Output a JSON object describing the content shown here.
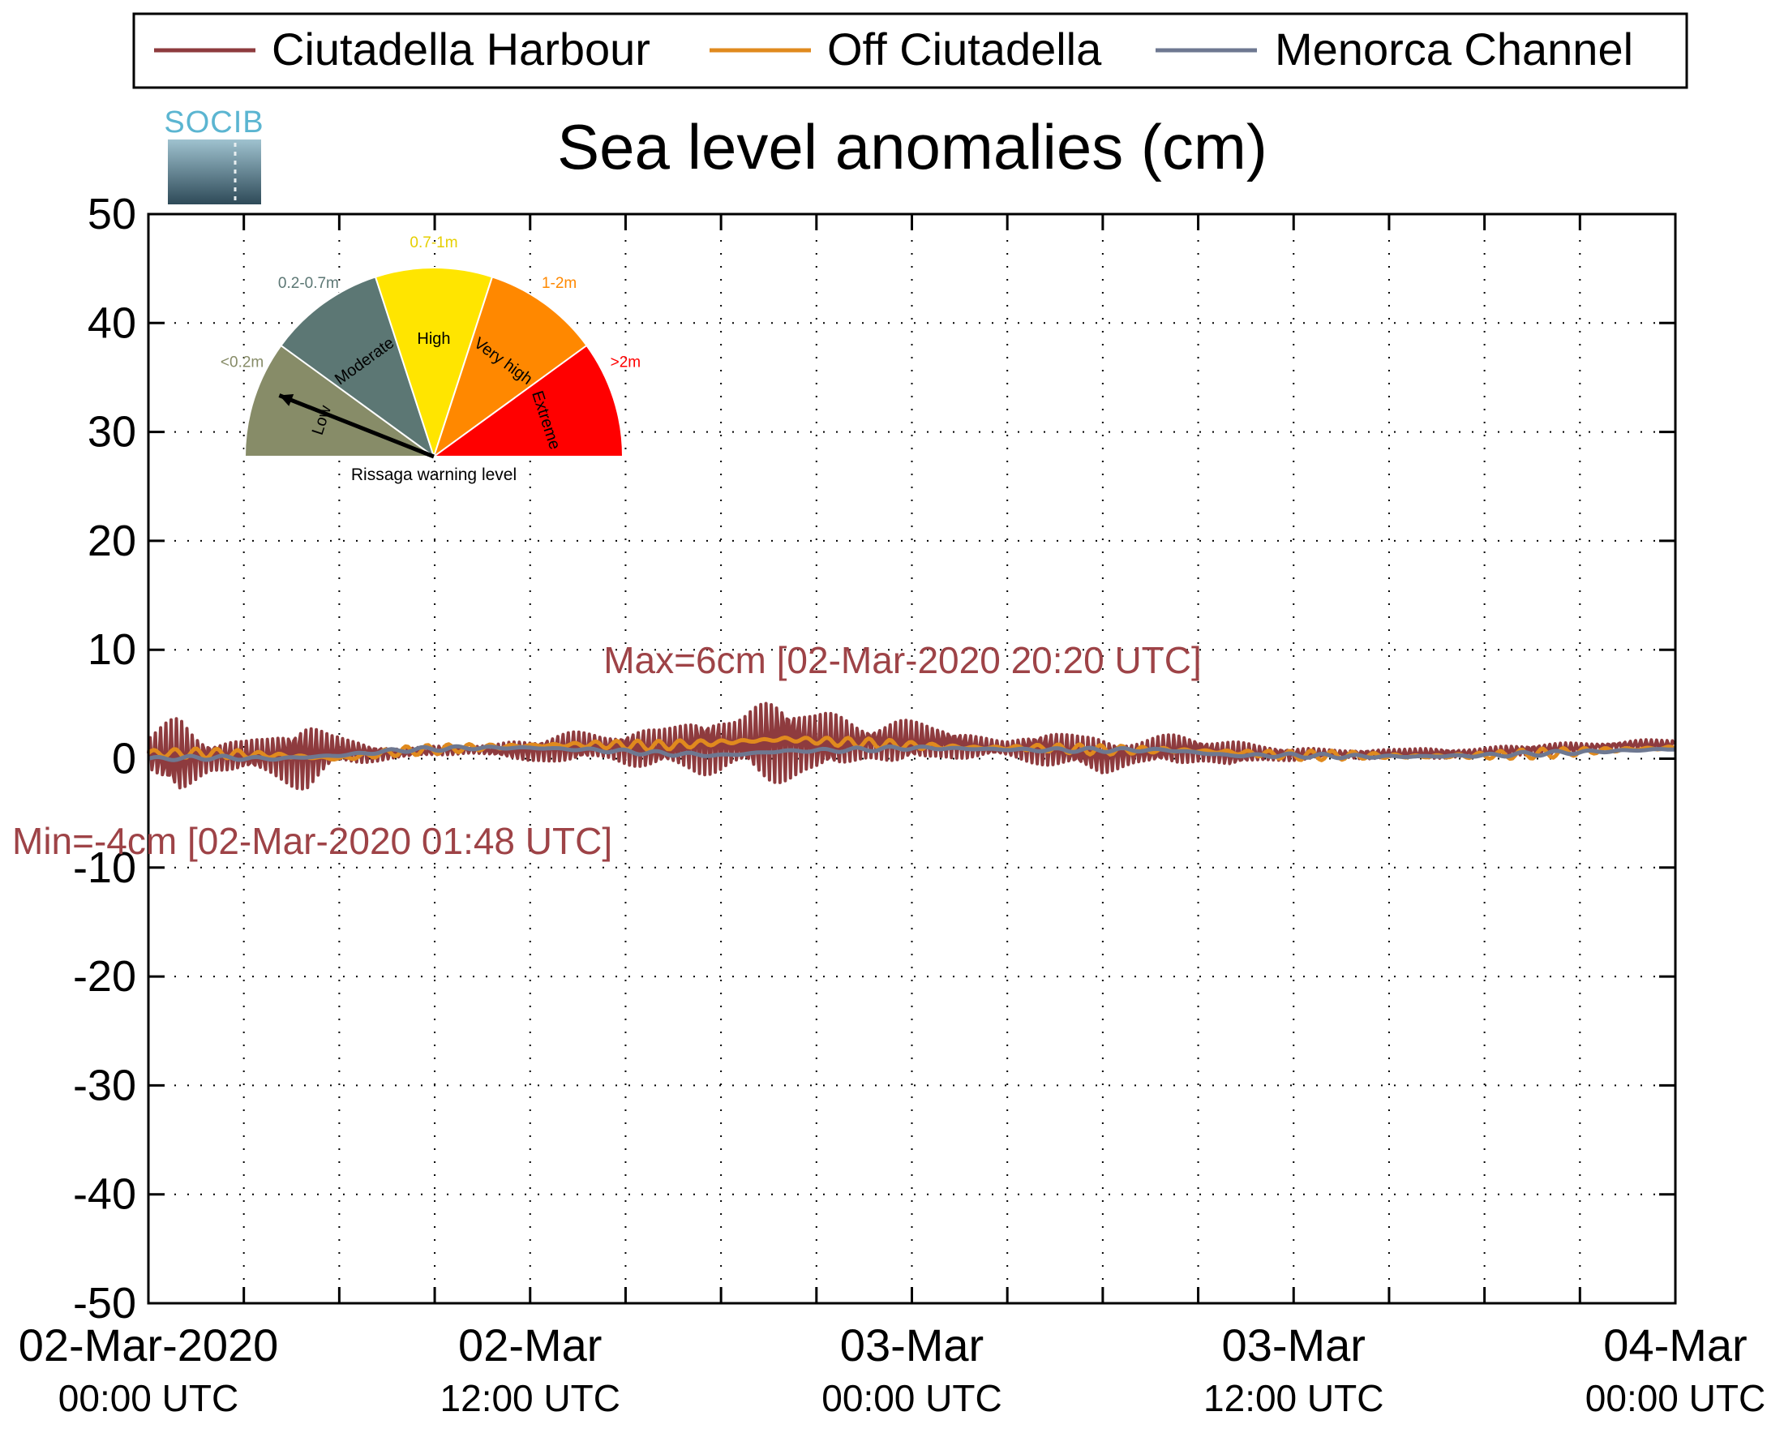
{
  "legend": {
    "items": [
      {
        "label": "Ciutadella Harbour",
        "color": "#8e3b3e"
      },
      {
        "label": "Off Ciutadella",
        "color": "#e08a1e"
      },
      {
        "label": "Menorca Channel",
        "color": "#6e7891"
      }
    ]
  },
  "logo": {
    "text": "SOCIB"
  },
  "chart_data": {
    "type": "line",
    "title": "Sea level anomalies (cm)",
    "xlabel": "",
    "ylabel": "",
    "ylim": [
      -50,
      50
    ],
    "yticks": [
      -50,
      -40,
      -30,
      -20,
      -10,
      0,
      10,
      20,
      30,
      40,
      50
    ],
    "xlim_hours": [
      0,
      48
    ],
    "xticks": [
      {
        "line1": "02-Mar-2020",
        "line2": "00:00 UTC",
        "hour": 0
      },
      {
        "line1": "02-Mar",
        "line2": "12:00 UTC",
        "hour": 12
      },
      {
        "line1": "03-Mar",
        "line2": "00:00 UTC",
        "hour": 24
      },
      {
        "line1": "03-Mar",
        "line2": "12:00 UTC",
        "hour": 36
      },
      {
        "line1": "04-Mar",
        "line2": "00:00 UTC",
        "hour": 48
      }
    ],
    "grid": true,
    "grid_every_hours": 3,
    "series": [
      {
        "name": "Ciutadella Harbour",
        "color": "#8e3b3e",
        "hours": [
          0,
          1,
          2,
          3,
          4,
          5,
          6,
          7,
          8,
          9,
          10,
          11,
          12,
          13,
          14,
          15,
          16,
          17,
          18,
          19,
          20,
          21,
          22,
          23,
          24,
          25,
          26,
          27,
          28,
          29,
          30,
          31,
          32,
          33,
          34,
          35,
          36,
          37,
          38,
          39,
          40,
          41,
          42,
          43,
          44,
          45,
          46,
          47,
          48
        ],
        "envelope_low": [
          -1.5,
          -4,
          -2,
          -1.5,
          -2.5,
          -3,
          -1.5,
          -0.5,
          0,
          0.3,
          0.2,
          0,
          -0.5,
          -0.5,
          -0.8,
          -1,
          -1.2,
          -1.5,
          -2.5,
          -3,
          -2.5,
          -2.2,
          -1.5,
          -1,
          -0.5,
          -0.5,
          -0.3,
          -0.2,
          -0.5,
          -1.5,
          -2,
          -1,
          -0.5,
          -0.8,
          -1.2,
          -0.5,
          -0.2,
          0,
          -0.2,
          0,
          0,
          0,
          0,
          0.2,
          0.3,
          0.5,
          0.7,
          0.8,
          0.8
        ],
        "envelope_high": [
          2.5,
          4,
          2.5,
          2,
          3,
          3.5,
          3,
          1.5,
          1,
          1.2,
          1.5,
          1.5,
          2,
          2.5,
          3,
          3,
          3,
          4,
          5,
          6,
          6,
          5,
          4.5,
          4,
          3.5,
          3.5,
          2.5,
          2,
          2.5,
          3,
          2.5,
          2,
          2.2,
          2.5,
          2,
          1.5,
          1,
          1,
          1,
          1,
          1,
          1,
          1.2,
          1.3,
          1.5,
          1.5,
          1.7,
          1.8,
          1.8
        ]
      },
      {
        "name": "Off Ciutadella",
        "color": "#e08a1e",
        "hours": [
          0,
          2,
          4,
          6,
          8,
          10,
          12,
          14,
          16,
          18,
          20,
          22,
          24,
          26,
          28,
          30,
          32,
          34,
          36,
          38,
          40,
          42,
          44,
          46,
          48
        ],
        "values": [
          0.5,
          0.5,
          0.3,
          0,
          0.7,
          1,
          1.2,
          1.3,
          1.2,
          1.5,
          1.8,
          1.5,
          1.2,
          1,
          1,
          0.8,
          0.8,
          0.6,
          0.3,
          0.3,
          0.2,
          0.3,
          0.5,
          0.8,
          1
        ]
      },
      {
        "name": "Menorca Channel",
        "color": "#6e7891",
        "hours": [
          0,
          2,
          4,
          6,
          8,
          10,
          12,
          14,
          16,
          18,
          20,
          22,
          24,
          26,
          28,
          30,
          32,
          34,
          36,
          38,
          40,
          42,
          44,
          46,
          48
        ],
        "values": [
          0,
          0.1,
          0,
          0.3,
          0.8,
          1,
          1,
          0.8,
          0.5,
          0.3,
          0.7,
          0.8,
          1,
          0.9,
          0.8,
          0.8,
          0.8,
          0.3,
          0.3,
          0.2,
          0.2,
          0.3,
          0.5,
          0.7,
          0.9
        ]
      }
    ],
    "annotations": {
      "max": {
        "text": "Max=6cm [02-Mar-2020 20:20 UTC]",
        "hour": 20.33,
        "value": 6
      },
      "min": {
        "text": "Min=-4cm [02-Mar-2020 01:48 UTC]",
        "hour": 1.8,
        "value": -4
      }
    }
  },
  "gauge": {
    "caption": "Rissaga warning level",
    "needle_level": "Low",
    "sectors": [
      {
        "label": "Low",
        "range": "<0.2m",
        "color": "#878c68",
        "range_color": "#878c68"
      },
      {
        "label": "Moderate",
        "range": "0.2-0.7m",
        "color": "#5c7774",
        "range_color": "#5c7774"
      },
      {
        "label": "High",
        "range": "0.7-1m",
        "color": "#ffe500",
        "range_color": "#e6cf00"
      },
      {
        "label": "Very high",
        "range": "1-2m",
        "color": "#ff8800",
        "range_color": "#ff8800"
      },
      {
        "label": "Extreme",
        "range": ">2m",
        "color": "#ff0000",
        "range_color": "#ff0000"
      }
    ]
  }
}
